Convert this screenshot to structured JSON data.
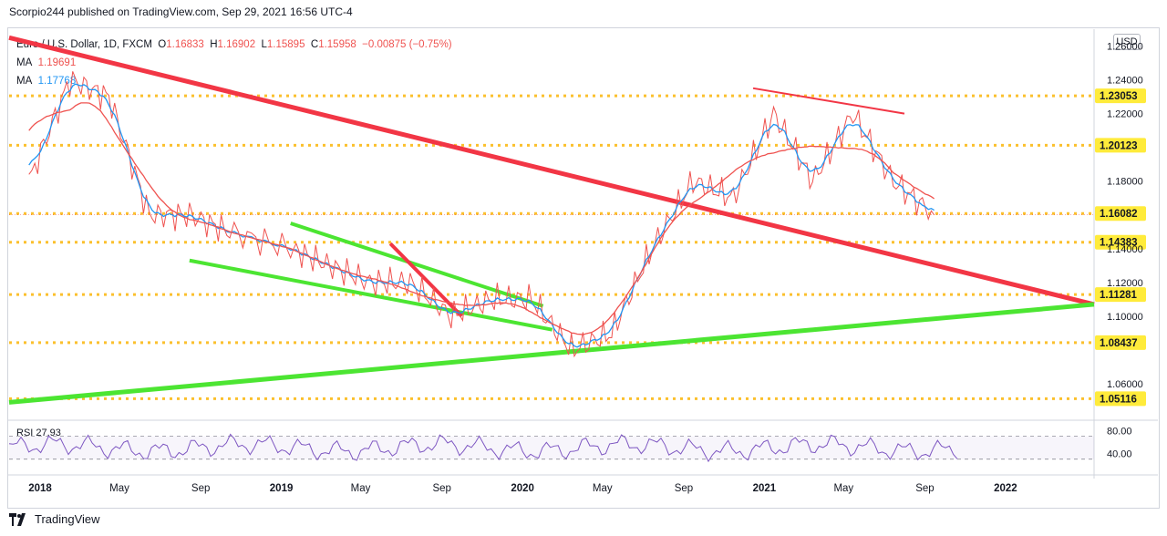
{
  "header": {
    "publish_line": "Scorpio244 published on TradingView.com, Sep 29, 2021 16:56 UTC-4"
  },
  "legend": {
    "symbol": "Euro / U.S. Dollar, 1D, FXCM",
    "open_label": "O",
    "open": "1.16833",
    "high_label": "H",
    "high": "1.16902",
    "low_label": "L",
    "low": "1.15895",
    "close_label": "C",
    "close": "1.15958",
    "change": "−0.00875 (−0.75%)",
    "ma1_label": "MA",
    "ma1_value": "1.19691",
    "ma2_label": "MA",
    "ma2_value": "1.17768"
  },
  "currency_button": "USD",
  "rsi": {
    "label": "RSI",
    "value": "27.93",
    "axis_top": "80.00",
    "axis_mid": "40.00"
  },
  "footer": {
    "brand": "TradingView"
  },
  "colors": {
    "price_line": "#ef5350",
    "ma_fast": "#2196f3",
    "ma_slow": "#ef5350",
    "resistance": "#f23645",
    "support": "#4ce532",
    "horizontal_levels": "#fbc02d",
    "rsi": "#7e57c2"
  },
  "chart_data": {
    "type": "line",
    "title": "Euro / U.S. Dollar, 1D, FXCM",
    "xlabel": "",
    "ylabel": "",
    "ylim": [
      1.04,
      1.27
    ],
    "x_ticks": [
      "2018",
      "May",
      "Sep",
      "2019",
      "May",
      "Sep",
      "2020",
      "May",
      "Sep",
      "2021",
      "May",
      "Sep",
      "2022"
    ],
    "y_ticks": [
      "1.26000",
      "1.24000",
      "1.22000",
      "1.18000",
      "1.14000",
      "1.12000",
      "1.10000",
      "1.06000"
    ],
    "horizontal_levels": [
      "1.23053",
      "1.20123",
      "1.16082",
      "1.14383",
      "1.11281",
      "1.08437",
      "1.05116"
    ],
    "series": [
      {
        "values_approx": {
          "x": [
            "2017-12",
            "2018-02",
            "2018-04",
            "2018-06",
            "2018-08",
            "2018-10",
            "2019-01",
            "2019-03",
            "2019-05",
            "2019-07",
            "2019-09",
            "2019-11",
            "2020-01",
            "2020-03",
            "2020-05",
            "2020-07",
            "2020-09",
            "2020-11",
            "2021-01",
            "2021-03",
            "2021-05",
            "2021-07",
            "2021-09"
          ],
          "y": [
            1.18,
            1.24,
            1.23,
            1.16,
            1.16,
            1.15,
            1.14,
            1.13,
            1.12,
            1.12,
            1.1,
            1.11,
            1.11,
            1.08,
            1.09,
            1.14,
            1.18,
            1.17,
            1.22,
            1.18,
            1.22,
            1.18,
            1.16
          ]
        }
      }
    ],
    "rsi_levels": [
      80,
      40
    ]
  }
}
